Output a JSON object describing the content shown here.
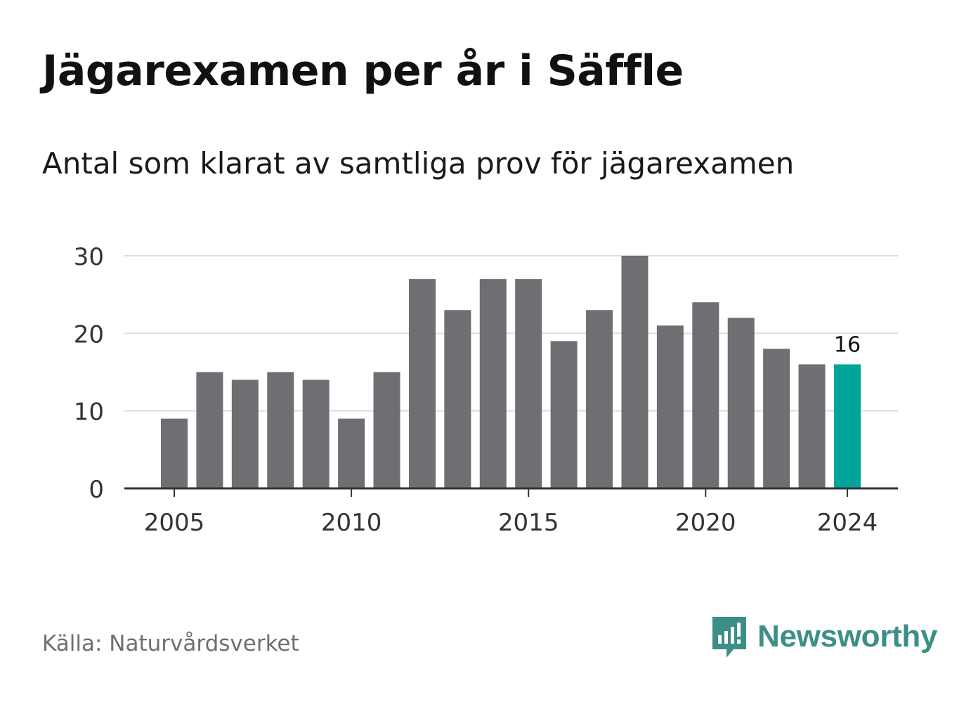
{
  "header": {
    "title": "Jägarexamen per år i Säffle",
    "subtitle": "Antal som klarat av samtliga prov för jägarexamen"
  },
  "footer": {
    "source": "Källa: Naturvårdsverket",
    "brand": "Newsworthy"
  },
  "colors": {
    "bar": "#6f6e73",
    "highlight": "#00a59a",
    "grid": "#dcdcdc",
    "axis": "#333333",
    "brand": "#3c8f87"
  },
  "chart_data": {
    "type": "bar",
    "x": [
      2005,
      2006,
      2007,
      2008,
      2009,
      2010,
      2011,
      2012,
      2013,
      2014,
      2015,
      2016,
      2017,
      2018,
      2019,
      2020,
      2021,
      2022,
      2023,
      2024
    ],
    "values": [
      9,
      15,
      14,
      15,
      14,
      9,
      15,
      27,
      23,
      27,
      27,
      19,
      23,
      30,
      21,
      24,
      22,
      18,
      16,
      16
    ],
    "x_ticks": [
      "2005",
      "2010",
      "2015",
      "2020",
      "2024"
    ],
    "y_ticks": [
      "0",
      "10",
      "20",
      "30"
    ],
    "ylim": [
      0,
      30
    ],
    "highlight_year": 2024,
    "highlight_label": "16",
    "grid": true
  }
}
